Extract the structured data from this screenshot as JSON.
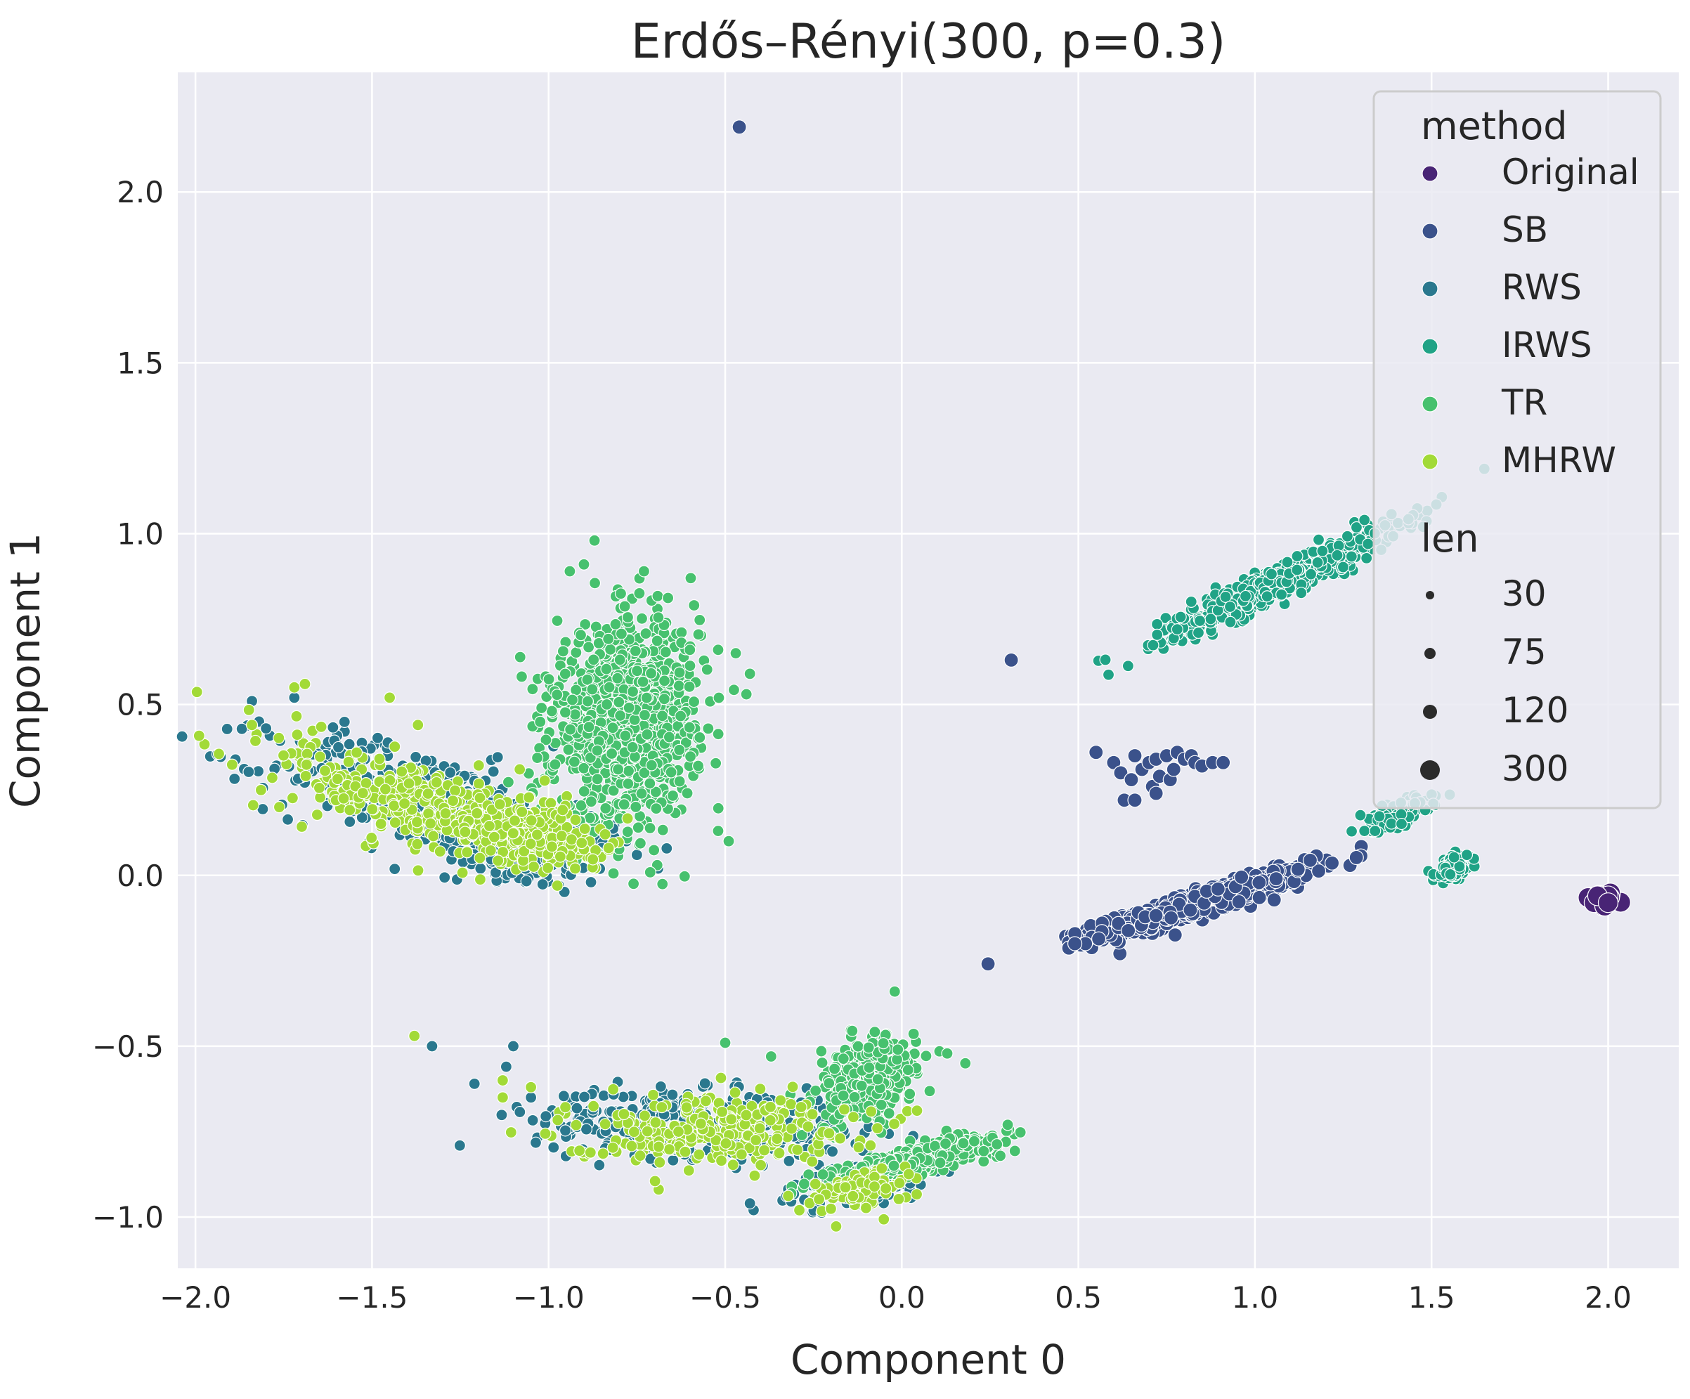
{
  "chart_data": {
    "type": "scatter",
    "title": "Erdős–Rényi(300, p=0.3)",
    "xlabel": "Component 0",
    "ylabel": "Component 1",
    "xlim": [
      -2.05,
      2.2
    ],
    "ylim": [
      -1.15,
      2.35
    ],
    "xticks": [
      -2.0,
      -1.5,
      -1.0,
      -0.5,
      0.0,
      0.5,
      1.0,
      1.5,
      2.0
    ],
    "xtick_labels": [
      "−2.0",
      "−1.5",
      "−1.0",
      "−0.5",
      "0.0",
      "0.5",
      "1.0",
      "1.5",
      "2.0"
    ],
    "yticks": [
      -1.0,
      -0.5,
      0.0,
      0.5,
      1.0,
      1.5,
      2.0
    ],
    "ytick_labels": [
      "−1.0",
      "−0.5",
      "0.0",
      "0.5",
      "1.0",
      "1.5",
      "2.0"
    ],
    "grid": true,
    "background": "#eaeaf2",
    "legend": {
      "placement": "top-right",
      "hue_title": "method",
      "size_title": "len",
      "hue_entries": [
        {
          "label": "Original",
          "color": "#482475"
        },
        {
          "label": "SB",
          "color": "#3b528b"
        },
        {
          "label": "RWS",
          "color": "#2a788e"
        },
        {
          "label": "IRWS",
          "color": "#20a386"
        },
        {
          "label": "TR",
          "color": "#47c16e"
        },
        {
          "label": "MHRW",
          "color": "#a2da37"
        }
      ],
      "size_entries": [
        {
          "label": "30",
          "len": 30
        },
        {
          "label": "75",
          "len": 75
        },
        {
          "label": "120",
          "len": 120
        },
        {
          "label": "300",
          "len": 300
        }
      ]
    },
    "series": [
      {
        "name": "Original",
        "color": "#482475",
        "len": 300,
        "clusters": [
          {
            "cx": 1.98,
            "cy": -0.07,
            "sx": 0.02,
            "sy": 0.012,
            "rho": 0,
            "n": 25
          }
        ],
        "points": [
          [
            1.96,
            -0.08
          ],
          [
            2.0,
            -0.06
          ],
          [
            1.99,
            -0.09
          ],
          [
            1.97,
            -0.06
          ],
          [
            2.0,
            -0.08
          ]
        ]
      },
      {
        "name": "SB",
        "color": "#3b528b",
        "len": 120,
        "clusters": [
          {
            "cx": 0.85,
            "cy": -0.08,
            "sx": 0.15,
            "sy": 0.05,
            "rho": 0.93,
            "n": 700
          }
        ],
        "points": [
          [
            -0.46,
            2.19
          ],
          [
            0.31,
            0.63
          ],
          [
            0.55,
            0.36
          ],
          [
            0.6,
            0.33
          ],
          [
            0.62,
            0.3
          ],
          [
            0.63,
            0.22
          ],
          [
            0.65,
            0.28
          ],
          [
            0.66,
            0.35
          ],
          [
            0.68,
            0.31
          ],
          [
            0.7,
            0.33
          ],
          [
            0.71,
            0.26
          ],
          [
            0.72,
            0.34
          ],
          [
            0.73,
            0.29
          ],
          [
            0.75,
            0.35
          ],
          [
            0.76,
            0.28
          ],
          [
            0.77,
            0.31
          ],
          [
            0.78,
            0.36
          ],
          [
            0.8,
            0.34
          ],
          [
            0.82,
            0.35
          ],
          [
            0.83,
            0.33
          ],
          [
            0.85,
            0.32
          ],
          [
            0.88,
            0.33
          ],
          [
            0.91,
            0.33
          ],
          [
            0.66,
            0.22
          ],
          [
            0.72,
            0.24
          ],
          [
            0.52,
            -0.2
          ],
          [
            0.49,
            -0.2
          ],
          [
            1.06,
            -0.01
          ]
        ]
      },
      {
        "name": "RWS",
        "color": "#2a788e",
        "len": 75,
        "clusters": [
          {
            "cx": -1.35,
            "cy": 0.22,
            "sx": 0.22,
            "sy": 0.09,
            "rho": -0.6,
            "n": 380
          },
          {
            "cx": -1.05,
            "cy": 0.09,
            "sx": 0.12,
            "sy": 0.05,
            "rho": -0.2,
            "n": 220
          },
          {
            "cx": -0.6,
            "cy": -0.73,
            "sx": 0.22,
            "sy": 0.05,
            "rho": -0.2,
            "n": 380
          },
          {
            "cx": -0.12,
            "cy": -0.9,
            "sx": 0.1,
            "sy": 0.04,
            "rho": 0.6,
            "n": 120
          }
        ],
        "points": [
          [
            -1.84,
            0.51
          ],
          [
            -1.82,
            0.45
          ],
          [
            -1.8,
            0.43
          ],
          [
            -1.72,
            0.52
          ],
          [
            -1.21,
            -0.61
          ],
          [
            -1.12,
            -0.56
          ],
          [
            -1.1,
            -0.5
          ],
          [
            -1.05,
            -0.65
          ],
          [
            -1.33,
            -0.5
          ],
          [
            -0.43,
            -0.96
          ],
          [
            -0.85,
            0.08
          ],
          [
            -0.78,
            0.1
          ],
          [
            -0.75,
            0.06
          ],
          [
            -0.69,
            0.02
          ],
          [
            -0.88,
            -0.02
          ]
        ]
      },
      {
        "name": "IRWS",
        "color": "#20a386",
        "len": 75,
        "clusters": [
          {
            "cx": 1.07,
            "cy": 0.86,
            "sx": 0.16,
            "sy": 0.08,
            "rho": 0.95,
            "n": 650
          },
          {
            "cx": 1.4,
            "cy": 0.18,
            "sx": 0.05,
            "sy": 0.025,
            "rho": 0.7,
            "n": 140
          },
          {
            "cx": 1.56,
            "cy": 0.02,
            "sx": 0.025,
            "sy": 0.02,
            "rho": 0.4,
            "n": 120
          }
        ],
        "points": [
          [
            0.78,
            0.72
          ],
          [
            0.84,
            0.71
          ],
          [
            1.31,
            1.04
          ],
          [
            1.32,
            0.97
          ],
          [
            1.31,
            0.13
          ],
          [
            1.34,
            0.13
          ],
          [
            1.6,
            0.06
          ]
        ]
      },
      {
        "name": "TR",
        "color": "#47c16e",
        "len": 75,
        "clusters": [
          {
            "cx": -0.78,
            "cy": 0.45,
            "sx": 0.1,
            "sy": 0.14,
            "rho": 0.1,
            "n": 1100
          },
          {
            "cx": -0.1,
            "cy": -0.6,
            "sx": 0.07,
            "sy": 0.06,
            "rho": 0.3,
            "n": 350
          },
          {
            "cx": 0.04,
            "cy": -0.83,
            "sx": 0.12,
            "sy": 0.035,
            "rho": 0.85,
            "n": 450
          }
        ],
        "points": [
          [
            -0.87,
            0.98
          ],
          [
            -0.9,
            0.91
          ],
          [
            -0.94,
            0.89
          ],
          [
            -0.73,
            0.89
          ],
          [
            -0.6,
            0.66
          ],
          [
            -0.52,
            0.66
          ],
          [
            -0.47,
            0.65
          ],
          [
            -0.43,
            0.59
          ],
          [
            -0.44,
            0.53
          ],
          [
            -1.02,
            0.49
          ],
          [
            -0.52,
            0.13
          ],
          [
            -0.49,
            0.1
          ],
          [
            -0.5,
            -0.49
          ],
          [
            -0.37,
            -0.53
          ],
          [
            0.18,
            -0.55
          ],
          [
            0.3,
            -0.73
          ],
          [
            -0.02,
            -0.34
          ]
        ]
      },
      {
        "name": "MHRW",
        "color": "#a2da37",
        "len": 75,
        "clusters": [
          {
            "cx": -1.35,
            "cy": 0.2,
            "sx": 0.2,
            "sy": 0.09,
            "rho": -0.65,
            "n": 350
          },
          {
            "cx": -1.05,
            "cy": 0.12,
            "sx": 0.1,
            "sy": 0.05,
            "rho": -0.3,
            "n": 180
          },
          {
            "cx": -0.55,
            "cy": -0.74,
            "sx": 0.2,
            "sy": 0.05,
            "rho": 0.1,
            "n": 260
          },
          {
            "cx": -0.13,
            "cy": -0.92,
            "sx": 0.08,
            "sy": 0.035,
            "rho": 0.5,
            "n": 90
          }
        ],
        "points": [
          [
            -1.84,
            0.44
          ],
          [
            -1.72,
            0.55
          ],
          [
            -1.69,
            0.56
          ],
          [
            -1.38,
            -0.47
          ],
          [
            -1.13,
            -0.6
          ],
          [
            -1.13,
            -0.65
          ],
          [
            -1.05,
            -0.62
          ],
          [
            -0.29,
            -0.98
          ],
          [
            -0.84,
            0.12
          ],
          [
            -0.83,
            0.08
          ],
          [
            -1.37,
            0.44
          ],
          [
            -1.45,
            0.52
          ]
        ]
      }
    ]
  }
}
